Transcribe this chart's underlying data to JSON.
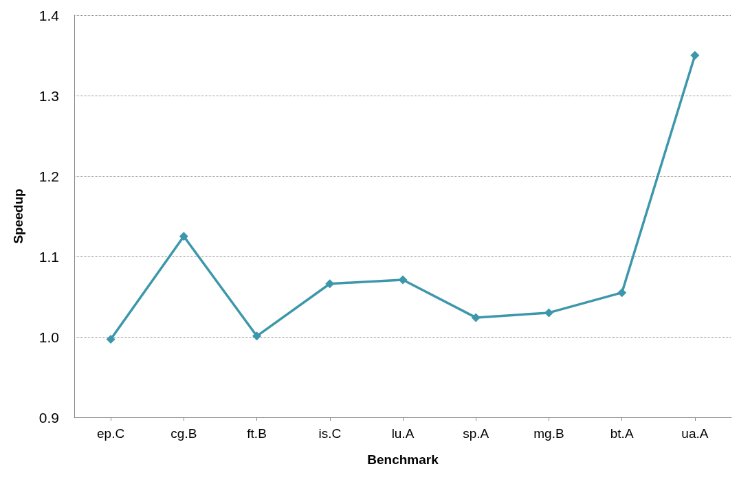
{
  "chart_data": {
    "type": "line",
    "xlabel": "Benchmark",
    "ylabel": "Speedup",
    "categories": [
      "ep.C",
      "cg.B",
      "ft.B",
      "is.C",
      "lu.A",
      "sp.A",
      "mg.B",
      "bt.A",
      "ua.A"
    ],
    "series": [
      {
        "color": "#3d97ab",
        "values": [
          0.997,
          1.125,
          1.001,
          1.066,
          1.071,
          1.024,
          1.03,
          1.055,
          1.35
        ]
      }
    ],
    "ylim": [
      0.9,
      1.4
    ],
    "yticks": [
      0.9,
      {
        "value": 1,
        "label": "1.0"
      },
      1.1,
      1.2,
      1.3,
      1.4
    ],
    "grid": "y",
    "marker": "diamond",
    "line_style": "solid"
  }
}
